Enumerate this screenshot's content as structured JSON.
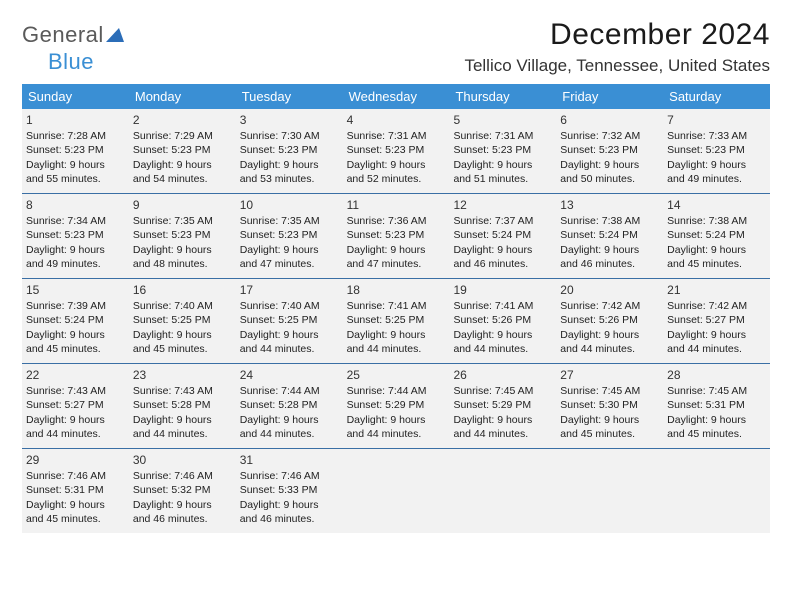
{
  "logo": {
    "part1": "General",
    "part2": "Blue"
  },
  "title": "December 2024",
  "location": "Tellico Village, Tennessee, United States",
  "colors": {
    "header_bg": "#3a8fd4",
    "header_text": "#ffffff",
    "week_border": "#3a6fa5",
    "cell_bg": "#f2f2f2",
    "page_bg": "#ffffff",
    "logo_gray": "#5a5a5a",
    "logo_blue": "#3a8fd4"
  },
  "dayHeaders": [
    "Sunday",
    "Monday",
    "Tuesday",
    "Wednesday",
    "Thursday",
    "Friday",
    "Saturday"
  ],
  "weeks": [
    [
      {
        "n": "1",
        "sunrise": "7:28 AM",
        "sunset": "5:23 PM",
        "daylight": "9 hours and 55 minutes."
      },
      {
        "n": "2",
        "sunrise": "7:29 AM",
        "sunset": "5:23 PM",
        "daylight": "9 hours and 54 minutes."
      },
      {
        "n": "3",
        "sunrise": "7:30 AM",
        "sunset": "5:23 PM",
        "daylight": "9 hours and 53 minutes."
      },
      {
        "n": "4",
        "sunrise": "7:31 AM",
        "sunset": "5:23 PM",
        "daylight": "9 hours and 52 minutes."
      },
      {
        "n": "5",
        "sunrise": "7:31 AM",
        "sunset": "5:23 PM",
        "daylight": "9 hours and 51 minutes."
      },
      {
        "n": "6",
        "sunrise": "7:32 AM",
        "sunset": "5:23 PM",
        "daylight": "9 hours and 50 minutes."
      },
      {
        "n": "7",
        "sunrise": "7:33 AM",
        "sunset": "5:23 PM",
        "daylight": "9 hours and 49 minutes."
      }
    ],
    [
      {
        "n": "8",
        "sunrise": "7:34 AM",
        "sunset": "5:23 PM",
        "daylight": "9 hours and 49 minutes."
      },
      {
        "n": "9",
        "sunrise": "7:35 AM",
        "sunset": "5:23 PM",
        "daylight": "9 hours and 48 minutes."
      },
      {
        "n": "10",
        "sunrise": "7:35 AM",
        "sunset": "5:23 PM",
        "daylight": "9 hours and 47 minutes."
      },
      {
        "n": "11",
        "sunrise": "7:36 AM",
        "sunset": "5:23 PM",
        "daylight": "9 hours and 47 minutes."
      },
      {
        "n": "12",
        "sunrise": "7:37 AM",
        "sunset": "5:24 PM",
        "daylight": "9 hours and 46 minutes."
      },
      {
        "n": "13",
        "sunrise": "7:38 AM",
        "sunset": "5:24 PM",
        "daylight": "9 hours and 46 minutes."
      },
      {
        "n": "14",
        "sunrise": "7:38 AM",
        "sunset": "5:24 PM",
        "daylight": "9 hours and 45 minutes."
      }
    ],
    [
      {
        "n": "15",
        "sunrise": "7:39 AM",
        "sunset": "5:24 PM",
        "daylight": "9 hours and 45 minutes."
      },
      {
        "n": "16",
        "sunrise": "7:40 AM",
        "sunset": "5:25 PM",
        "daylight": "9 hours and 45 minutes."
      },
      {
        "n": "17",
        "sunrise": "7:40 AM",
        "sunset": "5:25 PM",
        "daylight": "9 hours and 44 minutes."
      },
      {
        "n": "18",
        "sunrise": "7:41 AM",
        "sunset": "5:25 PM",
        "daylight": "9 hours and 44 minutes."
      },
      {
        "n": "19",
        "sunrise": "7:41 AM",
        "sunset": "5:26 PM",
        "daylight": "9 hours and 44 minutes."
      },
      {
        "n": "20",
        "sunrise": "7:42 AM",
        "sunset": "5:26 PM",
        "daylight": "9 hours and 44 minutes."
      },
      {
        "n": "21",
        "sunrise": "7:42 AM",
        "sunset": "5:27 PM",
        "daylight": "9 hours and 44 minutes."
      }
    ],
    [
      {
        "n": "22",
        "sunrise": "7:43 AM",
        "sunset": "5:27 PM",
        "daylight": "9 hours and 44 minutes."
      },
      {
        "n": "23",
        "sunrise": "7:43 AM",
        "sunset": "5:28 PM",
        "daylight": "9 hours and 44 minutes."
      },
      {
        "n": "24",
        "sunrise": "7:44 AM",
        "sunset": "5:28 PM",
        "daylight": "9 hours and 44 minutes."
      },
      {
        "n": "25",
        "sunrise": "7:44 AM",
        "sunset": "5:29 PM",
        "daylight": "9 hours and 44 minutes."
      },
      {
        "n": "26",
        "sunrise": "7:45 AM",
        "sunset": "5:29 PM",
        "daylight": "9 hours and 44 minutes."
      },
      {
        "n": "27",
        "sunrise": "7:45 AM",
        "sunset": "5:30 PM",
        "daylight": "9 hours and 45 minutes."
      },
      {
        "n": "28",
        "sunrise": "7:45 AM",
        "sunset": "5:31 PM",
        "daylight": "9 hours and 45 minutes."
      }
    ],
    [
      {
        "n": "29",
        "sunrise": "7:46 AM",
        "sunset": "5:31 PM",
        "daylight": "9 hours and 45 minutes."
      },
      {
        "n": "30",
        "sunrise": "7:46 AM",
        "sunset": "5:32 PM",
        "daylight": "9 hours and 46 minutes."
      },
      {
        "n": "31",
        "sunrise": "7:46 AM",
        "sunset": "5:33 PM",
        "daylight": "9 hours and 46 minutes."
      },
      null,
      null,
      null,
      null
    ]
  ],
  "labels": {
    "sunrise": "Sunrise: ",
    "sunset": "Sunset: ",
    "daylight": "Daylight: "
  }
}
